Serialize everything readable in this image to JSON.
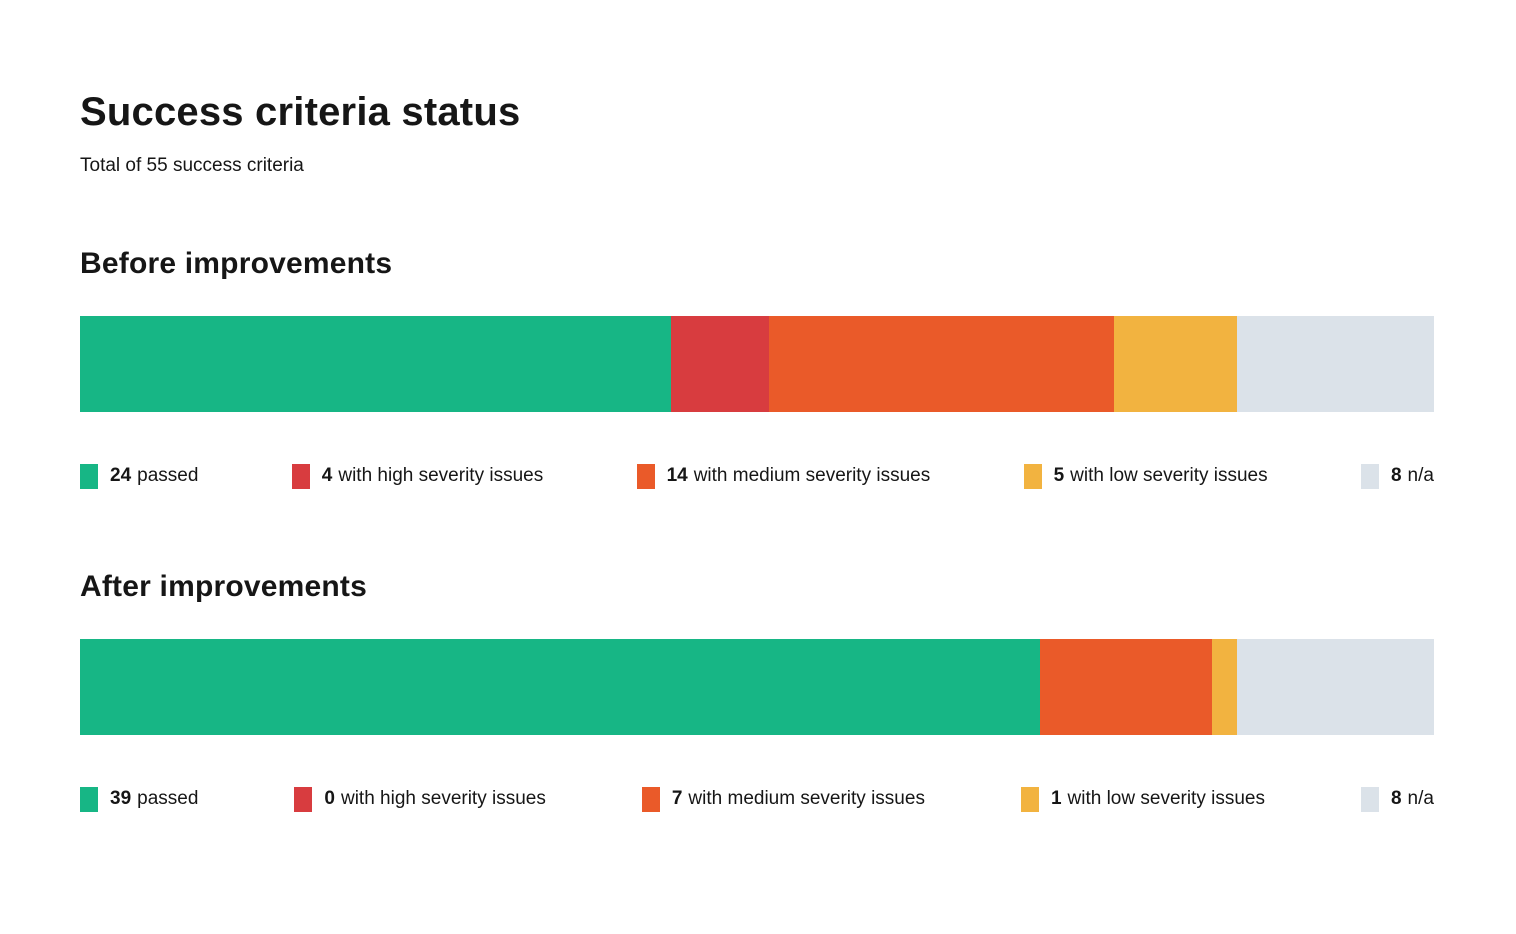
{
  "page": {
    "title": "Success criteria status",
    "subtitle": "Total of 55 success criteria"
  },
  "total_criteria": 55,
  "colors": {
    "passed": "#17B685",
    "high_severity": "#D83C3F",
    "medium_severity": "#EA5A29",
    "low_severity": "#F2B340",
    "na": "#DBE2E9",
    "text": "#161616",
    "background": "#FFFFFF"
  },
  "chart_data": [
    {
      "type": "bar",
      "subtype": "stacked-horizontal-100pct",
      "title": "Before improvements",
      "total": 55,
      "axes": "none",
      "legend_position": "below",
      "series": [
        {
          "key": "passed",
          "name": "passed",
          "value": 24,
          "color": "#17B685"
        },
        {
          "key": "high-severity",
          "name": "with high severity issues",
          "value": 4,
          "color": "#D83C3F"
        },
        {
          "key": "medium-severity",
          "name": "with medium severity issues",
          "value": 14,
          "color": "#EA5A29"
        },
        {
          "key": "low-severity",
          "name": "with low severity issues",
          "value": 5,
          "color": "#F2B340"
        },
        {
          "key": "na",
          "name": "n/a",
          "value": 8,
          "color": "#DBE2E9"
        }
      ]
    },
    {
      "type": "bar",
      "subtype": "stacked-horizontal-100pct",
      "title": "After improvements",
      "total": 55,
      "axes": "none",
      "legend_position": "below",
      "series": [
        {
          "key": "passed",
          "name": "passed",
          "value": 39,
          "color": "#17B685"
        },
        {
          "key": "high-severity",
          "name": "with high severity issues",
          "value": 0,
          "color": "#D83C3F"
        },
        {
          "key": "medium-severity",
          "name": "with medium severity issues",
          "value": 7,
          "color": "#EA5A29"
        },
        {
          "key": "low-severity",
          "name": "with low severity issues",
          "value": 1,
          "color": "#F2B340"
        },
        {
          "key": "na",
          "name": "n/a",
          "value": 8,
          "color": "#DBE2E9"
        }
      ]
    }
  ]
}
